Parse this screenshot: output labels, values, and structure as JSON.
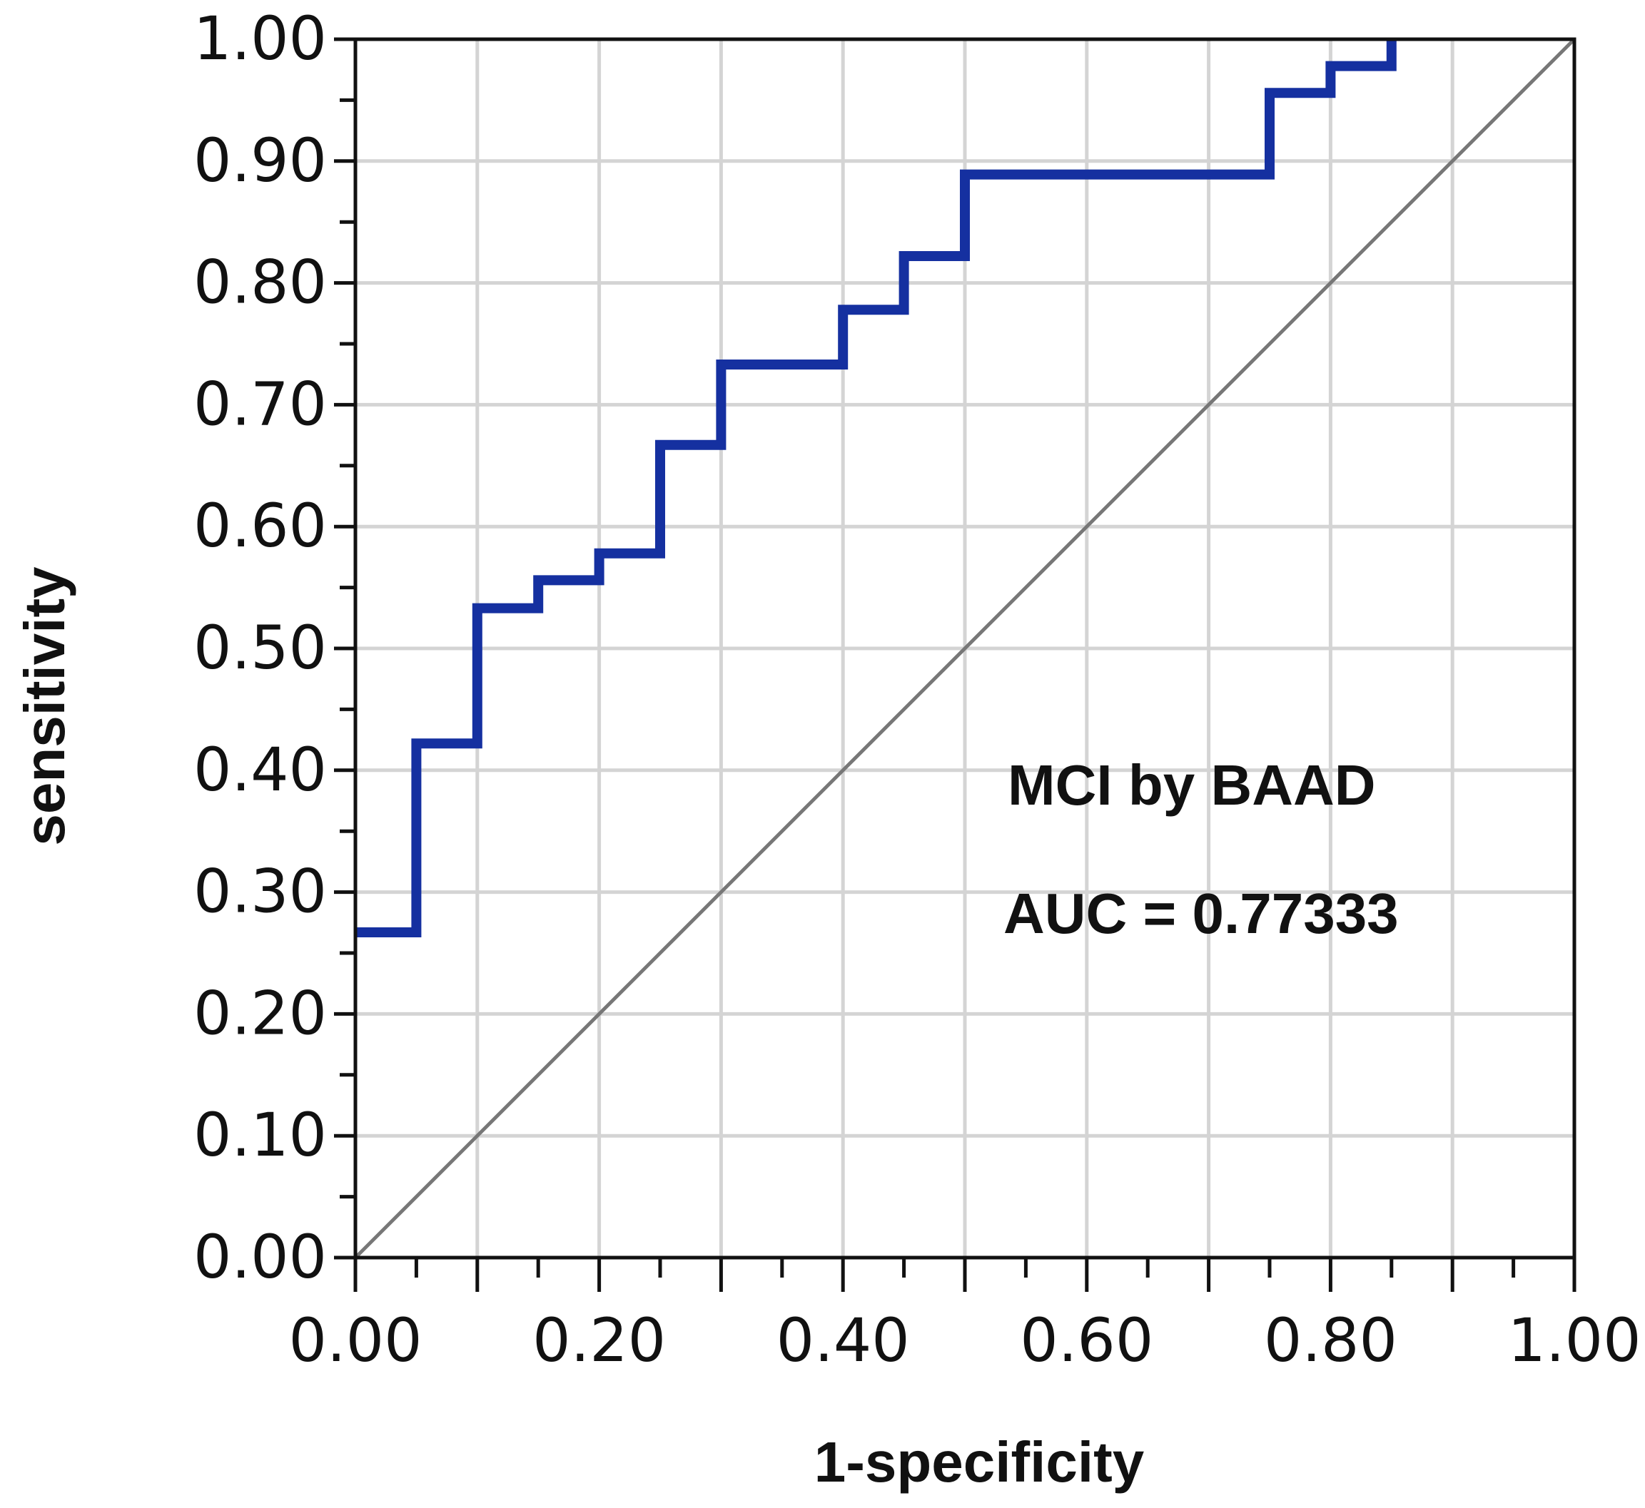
{
  "chart_data": {
    "type": "line",
    "title": "",
    "xlabel": "1-specificity",
    "ylabel": "sensitivity",
    "xlim": [
      0,
      1
    ],
    "ylim": [
      0,
      1
    ],
    "grid": true,
    "x_ticks": [
      "0.00",
      "0.20",
      "0.40",
      "0.60",
      "0.80",
      "1.00"
    ],
    "y_ticks": [
      "0.00",
      "0.10",
      "0.20",
      "0.30",
      "0.40",
      "0.50",
      "0.60",
      "0.70",
      "0.80",
      "0.90",
      "1.00"
    ],
    "series": [
      {
        "name": "MCI by BAAD",
        "color": "#1530a0",
        "style": "step",
        "points": [
          [
            0.0,
            0.267
          ],
          [
            0.05,
            0.267
          ],
          [
            0.05,
            0.422
          ],
          [
            0.1,
            0.422
          ],
          [
            0.1,
            0.533
          ],
          [
            0.15,
            0.533
          ],
          [
            0.15,
            0.556
          ],
          [
            0.2,
            0.556
          ],
          [
            0.2,
            0.578
          ],
          [
            0.25,
            0.578
          ],
          [
            0.25,
            0.667
          ],
          [
            0.3,
            0.667
          ],
          [
            0.3,
            0.733
          ],
          [
            0.4,
            0.733
          ],
          [
            0.4,
            0.778
          ],
          [
            0.45,
            0.778
          ],
          [
            0.45,
            0.822
          ],
          [
            0.5,
            0.822
          ],
          [
            0.5,
            0.889
          ],
          [
            0.75,
            0.889
          ],
          [
            0.75,
            0.956
          ],
          [
            0.8,
            0.956
          ],
          [
            0.8,
            0.978
          ],
          [
            0.85,
            0.978
          ],
          [
            0.85,
            1.0
          ]
        ]
      },
      {
        "name": "reference",
        "color": "#777777",
        "style": "line",
        "points": [
          [
            0,
            0
          ],
          [
            1,
            1
          ]
        ]
      }
    ],
    "annotations": [
      "MCI by BAAD",
      "AUC = 0.77333"
    ]
  }
}
